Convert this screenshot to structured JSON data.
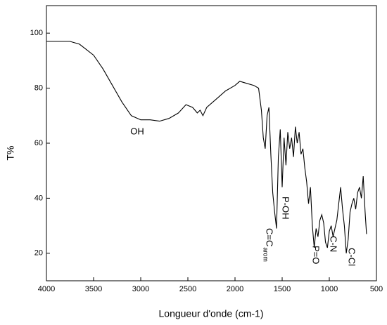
{
  "chart_data": {
    "type": "line",
    "x_label": "Longueur d'onde (cm-1)",
    "y_label": "T%",
    "xlim": [
      4000,
      500
    ],
    "xticks": [
      4000,
      3500,
      3000,
      2500,
      2000,
      1500,
      1000,
      500
    ],
    "ylim": [
      10,
      110
    ],
    "yticks": [
      20,
      40,
      60,
      80,
      100
    ],
    "series": [
      {
        "color": "#000000",
        "x": [
          4000,
          3750,
          3650,
          3500,
          3400,
          3300,
          3200,
          3100,
          3000,
          2900,
          2800,
          2700,
          2600,
          2520,
          2450,
          2400,
          2370,
          2340,
          2300,
          2200,
          2100,
          2000,
          1950,
          1900,
          1800,
          1750,
          1720,
          1700,
          1680,
          1660,
          1640,
          1620,
          1600,
          1580,
          1560,
          1540,
          1520,
          1500,
          1480,
          1460,
          1440,
          1420,
          1400,
          1380,
          1360,
          1340,
          1320,
          1300,
          1280,
          1260,
          1240,
          1220,
          1200,
          1180,
          1160,
          1140,
          1120,
          1100,
          1080,
          1060,
          1040,
          1020,
          1000,
          980,
          960,
          940,
          920,
          900,
          880,
          860,
          840,
          820,
          800,
          780,
          760,
          740,
          720,
          700,
          680,
          660,
          640,
          620,
          605
        ],
        "values": [
          97,
          97,
          96,
          92,
          87,
          81,
          75,
          70,
          68.5,
          68.5,
          68,
          69,
          71,
          74,
          73,
          71,
          72,
          70,
          73,
          76,
          79,
          81,
          82.5,
          82,
          81,
          80,
          72,
          62,
          58,
          70,
          73,
          56,
          42,
          35,
          29,
          55,
          65,
          44,
          62,
          52,
          64,
          58,
          62,
          55,
          66,
          60,
          64,
          56,
          58,
          51,
          46,
          38,
          44,
          30,
          22,
          29,
          26,
          32,
          34,
          31,
          24,
          22,
          28,
          30,
          26,
          29,
          32,
          38,
          44,
          36,
          30,
          20,
          25,
          35,
          38,
          40,
          36,
          42,
          44,
          40,
          48,
          35,
          27
        ]
      }
    ],
    "annotations": [
      {
        "text": "OH"
      },
      {
        "text": "C=C",
        "subscript": "arom"
      },
      {
        "text": "P-OH"
      },
      {
        "text": "P=O"
      },
      {
        "text": "C-N"
      },
      {
        "text": "C-Cl"
      }
    ]
  }
}
